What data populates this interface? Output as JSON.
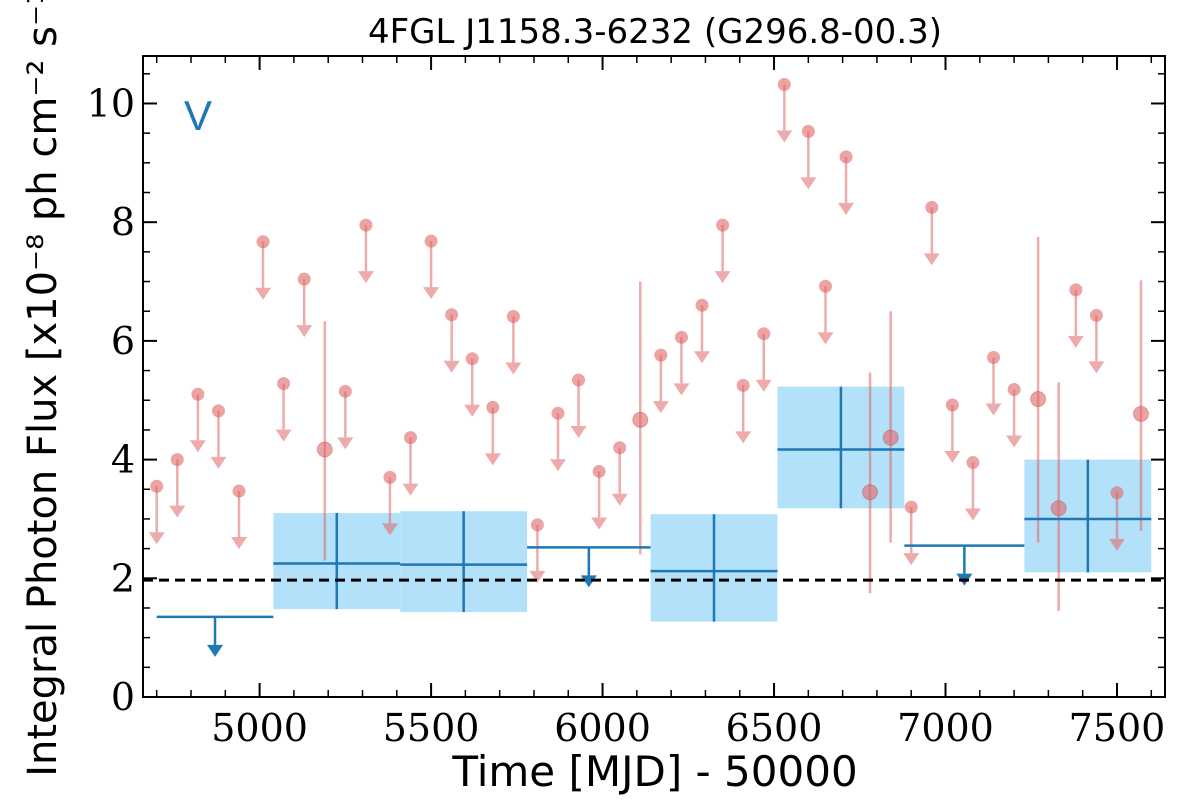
{
  "chart_data": {
    "type": "scatter",
    "title": "4FGL J1158.3-6232 (G296.8-00.3)",
    "xlabel": "Time [MJD] - 50000",
    "ylabel": "Integral Photon Flux [x10⁻⁸ ph cm⁻² s⁻¹]",
    "annotation": "V",
    "xlim": [
      4660,
      7640
    ],
    "ylim": [
      0,
      10.8
    ],
    "xticks": [
      5000,
      5500,
      6000,
      6500,
      7000,
      7500
    ],
    "yticks": [
      0,
      2,
      4,
      6,
      8,
      10
    ],
    "reference_level": 1.97,
    "colors": {
      "fine_bins": "#e06666",
      "coarse_bins": "#1f77b4",
      "coarse_band": "#b3e1fa",
      "reference": "#000000"
    },
    "series": [
      {
        "kind": "fine upper limits",
        "points": [
          {
            "x": 4700,
            "y": 3.55
          },
          {
            "x": 4760,
            "y": 4.0
          },
          {
            "x": 4820,
            "y": 5.1
          },
          {
            "x": 4880,
            "y": 4.82
          },
          {
            "x": 4940,
            "y": 3.47
          },
          {
            "x": 5010,
            "y": 7.67
          },
          {
            "x": 5070,
            "y": 5.28
          },
          {
            "x": 5130,
            "y": 7.04
          },
          {
            "x": 5250,
            "y": 5.15
          },
          {
            "x": 5310,
            "y": 7.95
          },
          {
            "x": 5380,
            "y": 3.7
          },
          {
            "x": 5440,
            "y": 4.37
          },
          {
            "x": 5500,
            "y": 7.68
          },
          {
            "x": 5560,
            "y": 6.44
          },
          {
            "x": 5620,
            "y": 5.7
          },
          {
            "x": 5680,
            "y": 4.88
          },
          {
            "x": 5740,
            "y": 6.41
          },
          {
            "x": 5810,
            "y": 2.9
          },
          {
            "x": 5870,
            "y": 4.78
          },
          {
            "x": 5930,
            "y": 5.34
          },
          {
            "x": 5990,
            "y": 3.8
          },
          {
            "x": 6050,
            "y": 4.2
          },
          {
            "x": 6170,
            "y": 5.76
          },
          {
            "x": 6230,
            "y": 6.06
          },
          {
            "x": 6290,
            "y": 6.6
          },
          {
            "x": 6350,
            "y": 7.95
          },
          {
            "x": 6410,
            "y": 5.25
          },
          {
            "x": 6470,
            "y": 6.12
          },
          {
            "x": 6530,
            "y": 10.32
          },
          {
            "x": 6600,
            "y": 9.53
          },
          {
            "x": 6710,
            "y": 9.1
          },
          {
            "x": 6650,
            "y": 6.92
          },
          {
            "x": 6900,
            "y": 3.2
          },
          {
            "x": 6960,
            "y": 8.25
          },
          {
            "x": 7020,
            "y": 4.92
          },
          {
            "x": 7080,
            "y": 3.95
          },
          {
            "x": 7140,
            "y": 5.72
          },
          {
            "x": 7200,
            "y": 5.18
          },
          {
            "x": 7380,
            "y": 6.86
          },
          {
            "x": 7440,
            "y": 6.43
          },
          {
            "x": 7500,
            "y": 3.44
          }
        ]
      },
      {
        "kind": "fine detections",
        "points": [
          {
            "x": 5190,
            "y": 4.17,
            "ylo": 2.3,
            "yhi": 6.33
          },
          {
            "x": 6110,
            "y": 4.67,
            "ylo": 2.4,
            "yhi": 7.0
          },
          {
            "x": 6780,
            "y": 3.45,
            "ylo": 1.75,
            "yhi": 5.47
          },
          {
            "x": 6840,
            "y": 4.37,
            "ylo": 2.6,
            "yhi": 6.5
          },
          {
            "x": 7270,
            "y": 5.02,
            "ylo": 2.6,
            "yhi": 7.75
          },
          {
            "x": 7330,
            "y": 3.18,
            "ylo": 1.45,
            "yhi": 5.3
          },
          {
            "x": 7570,
            "y": 4.77,
            "ylo": 2.8,
            "yhi": 7.02
          }
        ]
      },
      {
        "kind": "coarse upper limits",
        "bins": [
          {
            "x0": 4700,
            "x1": 5040,
            "y": 1.35
          },
          {
            "x0": 5780,
            "x1": 6140,
            "y": 2.52
          },
          {
            "x0": 6880,
            "x1": 7230,
            "y": 2.55
          }
        ]
      },
      {
        "kind": "coarse detections",
        "bins": [
          {
            "x0": 5040,
            "x1": 5410,
            "y": 2.25,
            "ylo": 1.48,
            "yhi": 3.1
          },
          {
            "x0": 5410,
            "x1": 5780,
            "y": 2.23,
            "ylo": 1.43,
            "yhi": 3.13
          },
          {
            "x0": 6140,
            "x1": 6510,
            "y": 2.12,
            "ylo": 1.27,
            "yhi": 3.08
          },
          {
            "x0": 6510,
            "x1": 6880,
            "y": 4.17,
            "ylo": 3.18,
            "yhi": 5.23
          },
          {
            "x0": 7230,
            "x1": 7600,
            "y": 3.0,
            "ylo": 2.1,
            "yhi": 4.0
          }
        ]
      }
    ]
  }
}
